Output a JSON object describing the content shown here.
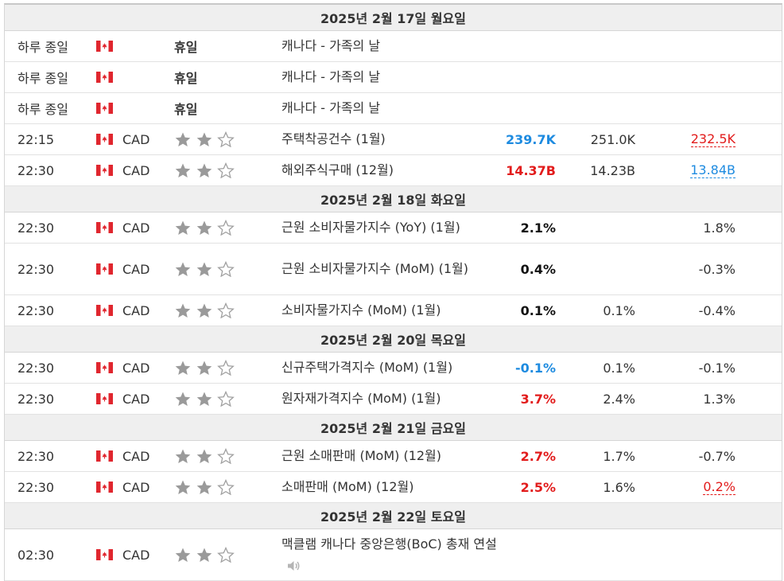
{
  "colors": {
    "header_bg": "#efefef",
    "better": "#1e8be0",
    "worse": "#e21c1c",
    "star_on": "#9a9a9a",
    "star_off": "#9a9a9a"
  },
  "days": [
    {
      "date": "2025년 2월 17일 월요일",
      "rows": [
        {
          "time": "하루 종일",
          "flag": "canada-flag-icon",
          "holiday": "휴일",
          "event": "캐나다 - 가족의 날"
        },
        {
          "time": "하루 종일",
          "flag": "canada-flag-icon",
          "holiday": "휴일",
          "event": "캐나다 - 가족의 날"
        },
        {
          "time": "하루 종일",
          "flag": "canada-flag-icon",
          "holiday": "휴일",
          "event": "캐나다 - 가족의 날"
        },
        {
          "time": "22:15",
          "flag": "canada-flag-icon",
          "currency": "CAD",
          "importance": 2,
          "event": "주택착공건수 (1월)",
          "actual": "239.7K",
          "actual_color": "better",
          "forecast": "251.0K",
          "previous": "232.5K",
          "previous_style": "rev-red"
        },
        {
          "time": "22:30",
          "flag": "canada-flag-icon",
          "currency": "CAD",
          "importance": 2,
          "event": "해외주식구매 (12월)",
          "actual": "14.37B",
          "actual_color": "worse",
          "forecast": "14.23B",
          "previous": "13.84B",
          "previous_style": "rev-blue"
        }
      ]
    },
    {
      "date": "2025년 2월 18일 화요일",
      "rows": [
        {
          "time": "22:30",
          "flag": "canada-flag-icon",
          "currency": "CAD",
          "importance": 2,
          "event": "근원 소비자물가지수 (YoY) (1월)",
          "actual": "2.1%",
          "actual_color": "neutral",
          "forecast": "",
          "previous": "1.8%"
        },
        {
          "time": "22:30",
          "flag": "canada-flag-icon",
          "currency": "CAD",
          "importance": 2,
          "event": "근원 소비자물가지수 (MoM) (1월)",
          "actual": "0.4%",
          "actual_color": "neutral",
          "forecast": "",
          "previous": "-0.3%"
        },
        {
          "time": "22:30",
          "flag": "canada-flag-icon",
          "currency": "CAD",
          "importance": 2,
          "event": "소비자물가지수 (MoM) (1월)",
          "actual": "0.1%",
          "actual_color": "neutral",
          "forecast": "0.1%",
          "previous": "-0.4%"
        }
      ]
    },
    {
      "date": "2025년 2월 20일 목요일",
      "rows": [
        {
          "time": "22:30",
          "flag": "canada-flag-icon",
          "currency": "CAD",
          "importance": 2,
          "event": "신규주택가격지수 (MoM) (1월)",
          "actual": "-0.1%",
          "actual_color": "better",
          "forecast": "0.1%",
          "previous": "-0.1%"
        },
        {
          "time": "22:30",
          "flag": "canada-flag-icon",
          "currency": "CAD",
          "importance": 2,
          "event": "원자재가격지수 (MoM) (1월)",
          "actual": "3.7%",
          "actual_color": "worse",
          "forecast": "2.4%",
          "previous": "1.3%"
        }
      ]
    },
    {
      "date": "2025년 2월 21일 금요일",
      "rows": [
        {
          "time": "22:30",
          "flag": "canada-flag-icon",
          "currency": "CAD",
          "importance": 2,
          "event": "근원 소매판매 (MoM) (12월)",
          "actual": "2.7%",
          "actual_color": "worse",
          "forecast": "1.7%",
          "previous": "-0.7%"
        },
        {
          "time": "22:30",
          "flag": "canada-flag-icon",
          "currency": "CAD",
          "importance": 2,
          "event": "소매판매 (MoM) (12월)",
          "actual": "2.5%",
          "actual_color": "worse",
          "forecast": "1.6%",
          "previous": "0.2%",
          "previous_style": "rev-red"
        }
      ]
    },
    {
      "date": "2025년 2월 22일 토요일",
      "rows": [
        {
          "time": "02:30",
          "flag": "canada-flag-icon",
          "currency": "CAD",
          "importance": 2,
          "event": "맥클램 캐나다 중앙은행(BoC) 총재 연설",
          "speech": true,
          "actual": "",
          "forecast": "",
          "previous": ""
        }
      ]
    }
  ]
}
